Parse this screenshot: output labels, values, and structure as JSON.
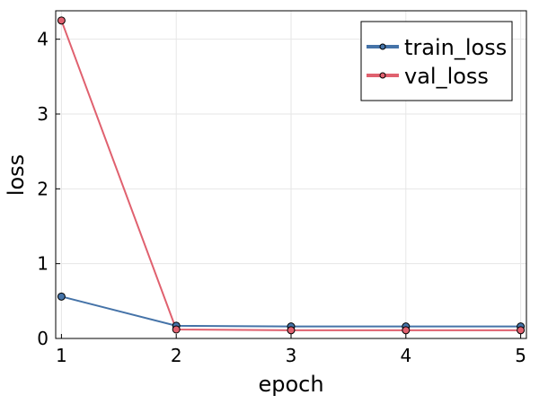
{
  "chart_data": {
    "type": "line",
    "xlabel": "epoch",
    "ylabel": "loss",
    "x": [
      1,
      2,
      3,
      4,
      5
    ],
    "xlim": [
      0.95,
      5.05
    ],
    "ylim": [
      0,
      4.38
    ],
    "xticks": [
      1,
      2,
      3,
      4,
      5
    ],
    "yticks": [
      0,
      1,
      2,
      3,
      4
    ],
    "grid": true,
    "legend_position": "top-right",
    "series": [
      {
        "name": "train_loss",
        "color": "#4573a8",
        "values": [
          0.56,
          0.17,
          0.16,
          0.16,
          0.16
        ]
      },
      {
        "name": "val_loss",
        "color": "#e0616f",
        "values": [
          4.25,
          0.12,
          0.11,
          0.11,
          0.11
        ]
      }
    ]
  }
}
